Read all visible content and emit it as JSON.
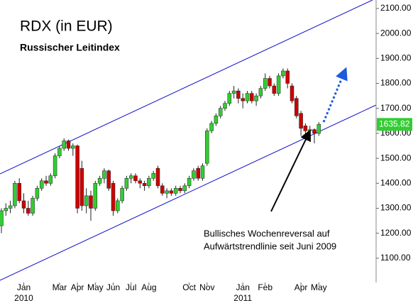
{
  "chart_data": {
    "type": "candlestick",
    "title": "RDX (in EUR)",
    "subtitle": "Russischer Leitindex",
    "annotation": [
      "Bullisches Wochenreversal auf",
      "Aufwärtstrendlinie seit Juni 2009"
    ],
    "categories": [
      null,
      null,
      null,
      null,
      null,
      "Jan",
      null,
      null,
      null,
      null,
      null,
      null,
      null,
      "Mar",
      null,
      null,
      null,
      "Apr",
      null,
      null,
      null,
      "May",
      null,
      null,
      null,
      "Jun",
      null,
      null,
      null,
      "Jul",
      null,
      null,
      null,
      "Aug",
      null,
      null,
      null,
      null,
      null,
      null,
      null,
      null,
      "Oct",
      null,
      null,
      null,
      "Nov",
      null,
      null,
      null,
      null,
      null,
      null,
      null,
      "Jan",
      null,
      null,
      null,
      null,
      "Feb",
      null,
      null,
      null,
      null,
      null,
      null,
      null,
      "Apr",
      null,
      null,
      null,
      "May"
    ],
    "year_labels": [
      {
        "category": 5,
        "label": "2010"
      },
      {
        "category": 54,
        "label": "2011"
      }
    ],
    "up_color": "#33cc33",
    "down_color": "#cc0000",
    "series": [
      {
        "name": "RDX",
        "open": [
          1230,
          1290,
          1300,
          1310,
          1400,
          1330,
          1300,
          1280,
          1340,
          1380,
          1410,
          1400,
          1430,
          1510,
          1540,
          1570,
          1540,
          1550,
          1460,
          1310,
          1350,
          1300,
          1400,
          1420,
          1450,
          1400,
          1290,
          1330,
          1380,
          1420,
          1430,
          1410,
          1400,
          1390,
          1420,
          1460,
          1390,
          1360,
          1370,
          1360,
          1380,
          1370,
          1390,
          1420,
          1460,
          1420,
          1480,
          1610,
          1640,
          1670,
          1700,
          1720,
          1760,
          1770,
          1740,
          1730,
          1760,
          1730,
          1750,
          1780,
          1820,
          1790,
          1760,
          1830,
          1850,
          1790,
          1740,
          1680,
          1630,
          1610,
          1615,
          1600
        ],
        "high": [
          1300,
          1320,
          1330,
          1410,
          1420,
          1360,
          1330,
          1350,
          1390,
          1420,
          1430,
          1440,
          1520,
          1550,
          1580,
          1575,
          1560,
          1555,
          1490,
          1380,
          1370,
          1410,
          1430,
          1460,
          1455,
          1410,
          1340,
          1390,
          1430,
          1440,
          1440,
          1420,
          1410,
          1430,
          1450,
          1470,
          1400,
          1380,
          1380,
          1390,
          1390,
          1400,
          1430,
          1460,
          1470,
          1480,
          1620,
          1650,
          1680,
          1710,
          1730,
          1770,
          1790,
          1780,
          1760,
          1770,
          1770,
          1760,
          1790,
          1840,
          1830,
          1800,
          1840,
          1860,
          1860,
          1800,
          1750,
          1690,
          1640,
          1630,
          1620,
          1645
        ],
        "low": [
          1200,
          1270,
          1280,
          1300,
          1320,
          1280,
          1270,
          1270,
          1330,
          1370,
          1390,
          1390,
          1420,
          1500,
          1530,
          1530,
          1510,
          1280,
          1290,
          1280,
          1250,
          1290,
          1390,
          1400,
          1370,
          1270,
          1280,
          1320,
          1370,
          1400,
          1400,
          1380,
          1370,
          1380,
          1410,
          1380,
          1350,
          1340,
          1350,
          1350,
          1360,
          1360,
          1380,
          1410,
          1410,
          1410,
          1470,
          1600,
          1630,
          1660,
          1690,
          1710,
          1740,
          1720,
          1700,
          1720,
          1720,
          1710,
          1740,
          1770,
          1780,
          1750,
          1750,
          1820,
          1780,
          1720,
          1660,
          1590,
          1580,
          1580,
          1560,
          1590
        ],
        "close": [
          1290,
          1300,
          1310,
          1400,
          1330,
          1300,
          1280,
          1340,
          1380,
          1410,
          1400,
          1430,
          1510,
          1540,
          1570,
          1540,
          1550,
          1300,
          1310,
          1350,
          1300,
          1400,
          1420,
          1450,
          1380,
          1290,
          1330,
          1380,
          1420,
          1430,
          1410,
          1400,
          1390,
          1420,
          1440,
          1390,
          1360,
          1370,
          1360,
          1380,
          1370,
          1390,
          1420,
          1450,
          1420,
          1470,
          1610,
          1640,
          1670,
          1700,
          1720,
          1760,
          1770,
          1740,
          1730,
          1760,
          1730,
          1750,
          1780,
          1820,
          1790,
          1760,
          1830,
          1850,
          1800,
          1730,
          1670,
          1620,
          1610,
          1615,
          1600,
          1635.82
        ]
      }
    ],
    "ylim": [
      1003,
      2134
    ],
    "yticks": [
      {
        "value": 1100,
        "label": "1100.00"
      },
      {
        "value": 1200,
        "label": "1200.00"
      },
      {
        "value": 1300,
        "label": "1300.00"
      },
      {
        "value": 1400,
        "label": "1400.00"
      },
      {
        "value": 1500,
        "label": "1500.00"
      },
      {
        "value": 1600,
        "label": "1600.00"
      },
      {
        "value": 1700,
        "label": "1700.00"
      },
      {
        "value": 1800,
        "label": "1800.00"
      },
      {
        "value": 1900,
        "label": "1900.00"
      },
      {
        "value": 2000,
        "label": "2000.00"
      },
      {
        "value": 2100,
        "label": "2100.00"
      }
    ]
  }
}
